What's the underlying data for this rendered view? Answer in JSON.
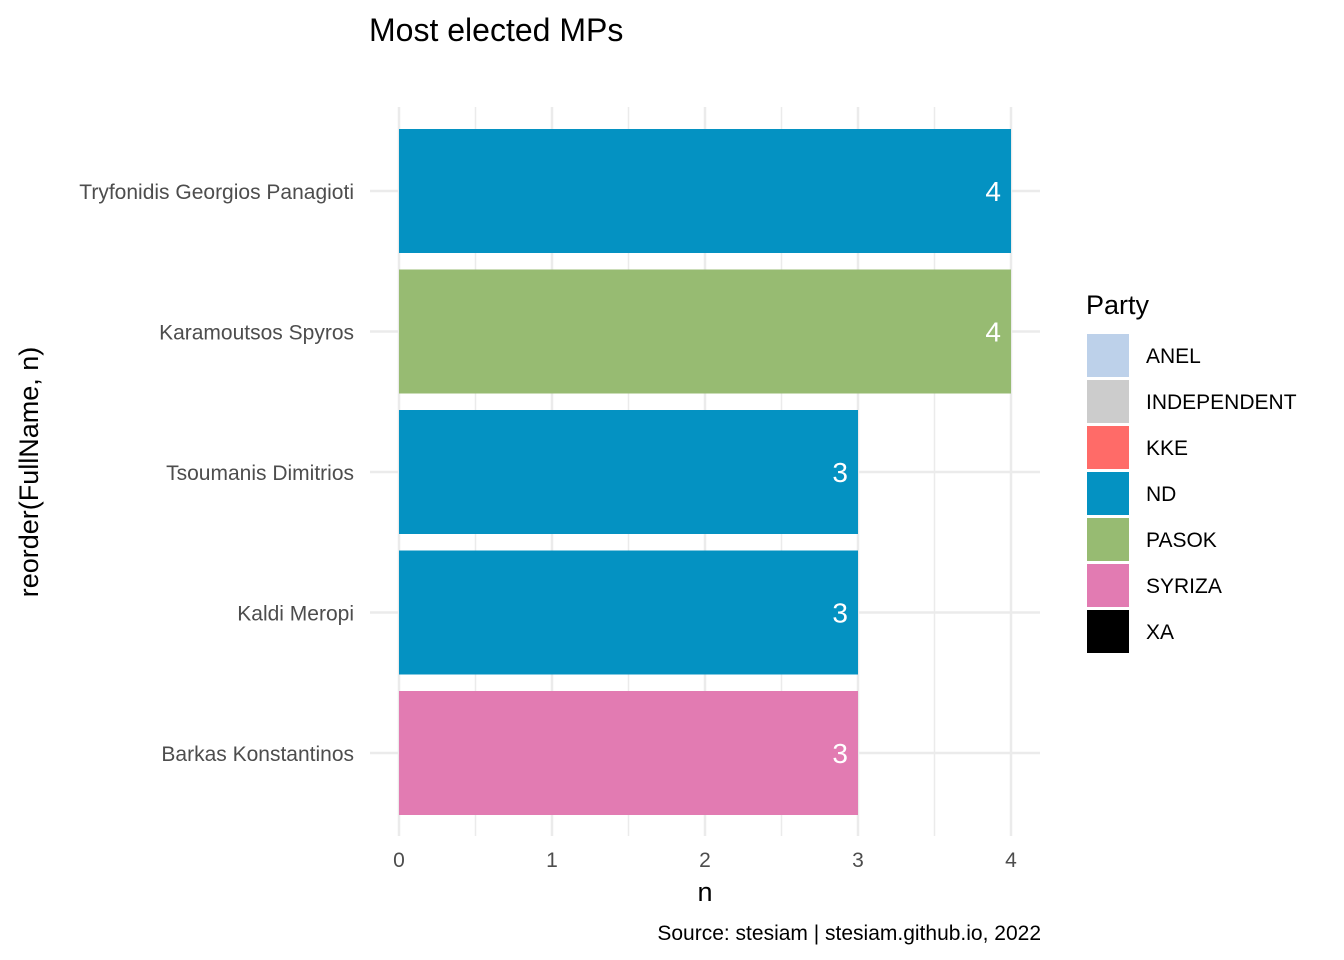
{
  "chart_data": {
    "type": "bar",
    "orientation": "horizontal",
    "title": "Most elected MPs",
    "xlabel": "n",
    "ylabel": "reorder(FullName, n)",
    "caption": "Source: stesiam | stesiam.github.io, 2022",
    "xlim": [
      0,
      4
    ],
    "x_ticks": [
      0,
      1,
      2,
      3,
      4
    ],
    "grid": true,
    "categories": [
      "Tryfonidis Georgios Panagioti",
      "Karamoutsos Spyros",
      "Tsoumanis Dimitrios",
      "Kaldi Meropi",
      "Barkas Konstantinos"
    ],
    "values": [
      4,
      4,
      3,
      3,
      3
    ],
    "party": [
      "ND",
      "PASOK",
      "ND",
      "ND",
      "SYRIZA"
    ],
    "legend": {
      "title": "Party",
      "position": "right",
      "entries": [
        {
          "label": "ANEL",
          "color": "#BDD1EA"
        },
        {
          "label": "INDEPENDENT",
          "color": "#CCCCCC"
        },
        {
          "label": "KKE",
          "color": "#FF6B68"
        },
        {
          "label": "ND",
          "color": "#0492C2"
        },
        {
          "label": "PASOK",
          "color": "#97BB72"
        },
        {
          "label": "SYRIZA",
          "color": "#E27BB2"
        },
        {
          "label": "XA",
          "color": "#000000"
        }
      ]
    }
  }
}
